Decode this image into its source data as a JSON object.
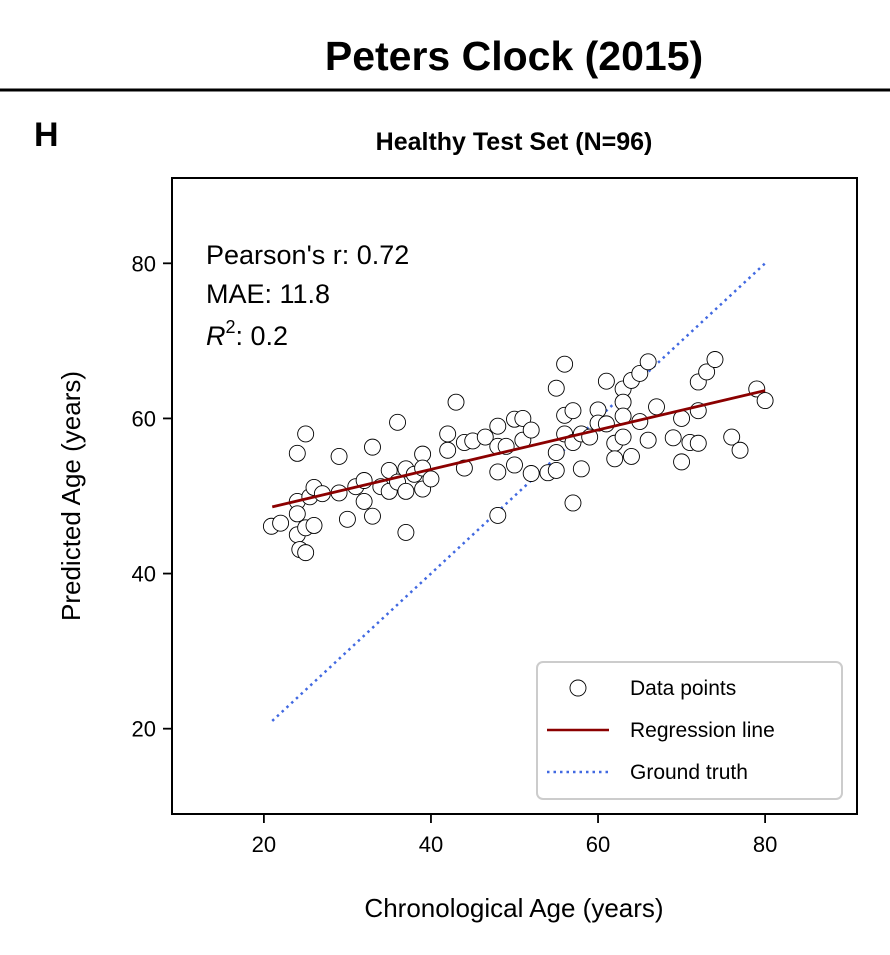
{
  "figure": {
    "title": "Peters Clock (2015)",
    "panel_letter": "H"
  },
  "stats": {
    "pearson": "Pearson's r: 0.72",
    "mae": "MAE: 11.8",
    "r2_symbol": "R",
    "r2_sup": "2",
    "r2_value": ": 0.2"
  },
  "colors": {
    "regression": "#8b0000",
    "ground_truth": "#4169e1",
    "points_edge": "#000000",
    "points_fill": "#ffffff"
  },
  "chart_data": {
    "type": "scatter",
    "title": "Healthy Test Set (N=96)",
    "xlabel": "Chronological Age (years)",
    "ylabel": "Predicted Age (years)",
    "xlim": [
      9,
      91
    ],
    "ylim": [
      9,
      91
    ],
    "xticks": [
      20,
      40,
      60,
      80
    ],
    "yticks": [
      20,
      40,
      60,
      80
    ],
    "grid": false,
    "legend_position": "lower-right",
    "legend": [
      "Data points",
      "Regression line",
      "Ground truth"
    ],
    "series": [
      {
        "name": "Data points",
        "kind": "scatter",
        "points": [
          [
            20.9,
            46.1
          ],
          [
            22.0,
            46.5
          ],
          [
            24.0,
            55.5
          ],
          [
            24.0,
            49.3
          ],
          [
            24.0,
            47.7
          ],
          [
            24.0,
            45.0
          ],
          [
            24.3,
            43.1
          ],
          [
            25.0,
            42.7
          ],
          [
            25.0,
            45.9
          ],
          [
            25.0,
            58.0
          ],
          [
            25.5,
            49.9
          ],
          [
            26.0,
            51.1
          ],
          [
            26.0,
            46.2
          ],
          [
            27.0,
            50.3
          ],
          [
            29.0,
            55.1
          ],
          [
            29.0,
            50.4
          ],
          [
            30.0,
            47.0
          ],
          [
            31.0,
            51.2
          ],
          [
            32.0,
            52.0
          ],
          [
            32.0,
            49.3
          ],
          [
            33.0,
            56.3
          ],
          [
            33.0,
            47.4
          ],
          [
            34.0,
            51.2
          ],
          [
            35.0,
            53.3
          ],
          [
            35.0,
            50.6
          ],
          [
            36.0,
            59.5
          ],
          [
            36.0,
            51.8
          ],
          [
            37.0,
            53.5
          ],
          [
            37.0,
            50.6
          ],
          [
            37.0,
            45.3
          ],
          [
            38.0,
            52.8
          ],
          [
            39.0,
            55.4
          ],
          [
            39.0,
            53.6
          ],
          [
            39.0,
            50.9
          ],
          [
            40.0,
            52.2
          ],
          [
            42.0,
            58.0
          ],
          [
            42.0,
            55.9
          ],
          [
            43.0,
            62.1
          ],
          [
            44.0,
            56.9
          ],
          [
            44.0,
            53.6
          ],
          [
            45.0,
            57.1
          ],
          [
            46.5,
            57.6
          ],
          [
            48.0,
            59.0
          ],
          [
            48.0,
            56.4
          ],
          [
            48.0,
            53.1
          ],
          [
            48.0,
            47.5
          ],
          [
            49.0,
            56.4
          ],
          [
            50.0,
            59.9
          ],
          [
            50.0,
            54.0
          ],
          [
            51.0,
            60.0
          ],
          [
            51.0,
            57.2
          ],
          [
            52.0,
            52.9
          ],
          [
            54.0,
            53.0
          ],
          [
            55.0,
            63.9
          ],
          [
            55.0,
            55.6
          ],
          [
            55.0,
            53.3
          ],
          [
            56.0,
            67.0
          ],
          [
            56.0,
            60.4
          ],
          [
            56.0,
            58.0
          ],
          [
            57.0,
            61.0
          ],
          [
            57.0,
            56.9
          ],
          [
            57.0,
            49.1
          ],
          [
            58.0,
            58.0
          ],
          [
            58.0,
            53.5
          ],
          [
            59.0,
            57.6
          ],
          [
            60.0,
            61.1
          ],
          [
            60.0,
            59.4
          ],
          [
            61.0,
            64.8
          ],
          [
            61.0,
            59.3
          ],
          [
            62.0,
            56.8
          ],
          [
            62.0,
            54.8
          ],
          [
            63.0,
            63.8
          ],
          [
            63.0,
            62.1
          ],
          [
            63.0,
            60.3
          ],
          [
            63.0,
            57.6
          ],
          [
            64.0,
            64.9
          ],
          [
            64.0,
            55.1
          ],
          [
            65.0,
            65.8
          ],
          [
            65.0,
            59.6
          ],
          [
            66.0,
            67.3
          ],
          [
            66.0,
            57.2
          ],
          [
            69.0,
            57.5
          ],
          [
            70.0,
            60.0
          ],
          [
            70.0,
            54.4
          ],
          [
            71.0,
            56.9
          ],
          [
            72.0,
            64.7
          ],
          [
            72.0,
            61.0
          ],
          [
            72.0,
            56.8
          ],
          [
            73.0,
            66.0
          ],
          [
            74.0,
            67.6
          ],
          [
            76.0,
            57.6
          ],
          [
            77.0,
            55.9
          ],
          [
            79.0,
            63.8
          ],
          [
            80.0,
            62.3
          ],
          [
            67.0,
            61.5
          ],
          [
            52.0,
            58.5
          ]
        ]
      },
      {
        "name": "Regression line",
        "kind": "line",
        "points": [
          [
            21,
            48.6
          ],
          [
            80,
            63.6
          ]
        ]
      },
      {
        "name": "Ground truth",
        "kind": "line",
        "style": "dotted",
        "points": [
          [
            21,
            21
          ],
          [
            80,
            80
          ]
        ]
      }
    ]
  }
}
